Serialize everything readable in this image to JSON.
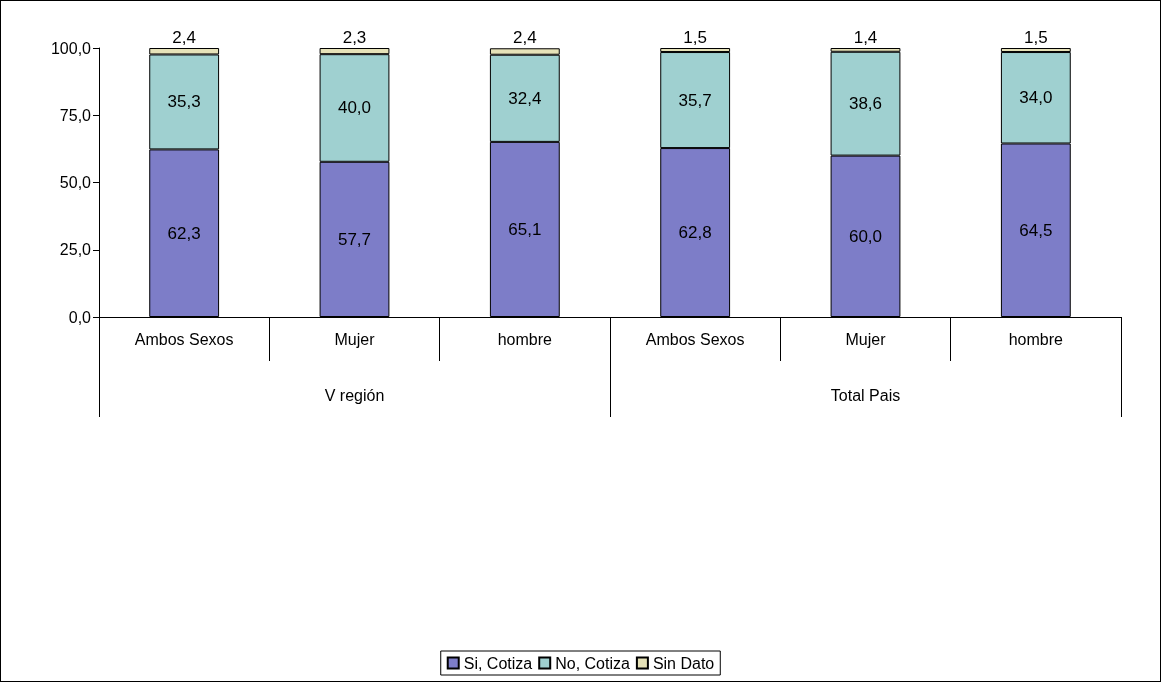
{
  "chart_data": {
    "type": "bar",
    "stacked": true,
    "categories": [
      "Ambos Sexos",
      "Mujer",
      "hombre",
      "Ambos Sexos",
      "Mujer",
      "hombre"
    ],
    "series": [
      {
        "name": "Si, Cotiza",
        "color": "#7d7dc8",
        "values": [
          62.3,
          57.7,
          65.1,
          62.8,
          60.0,
          64.5
        ],
        "value_labels": [
          "62,3",
          "57,7",
          "65,1",
          "62,8",
          "60,0",
          "64,5"
        ]
      },
      {
        "name": "No, Cotiza",
        "color": "#9fd0d0",
        "values": [
          35.3,
          40.0,
          32.4,
          35.7,
          38.6,
          34.0
        ],
        "value_labels": [
          "35,3",
          "40,0",
          "32,4",
          "35,7",
          "38,6",
          "34,0"
        ]
      },
      {
        "name": "Sin Dato",
        "color": "#e6e2b8",
        "values": [
          2.4,
          2.3,
          2.4,
          1.5,
          1.4,
          1.5
        ],
        "value_labels": [
          "2,4",
          "2,3",
          "2,4",
          "1,5",
          "1,4",
          "1,5"
        ]
      }
    ],
    "ylim": [
      0,
      100
    ],
    "yticks": [
      {
        "value": 0,
        "label": "0,0"
      },
      {
        "value": 25,
        "label": "25,0"
      },
      {
        "value": 50,
        "label": "50,0"
      },
      {
        "value": 75,
        "label": "75,0"
      },
      {
        "value": 100,
        "label": "100,0"
      }
    ],
    "annotations": [
      "V región",
      "Total Pais"
    ],
    "grid": false,
    "legend": "bottom"
  }
}
